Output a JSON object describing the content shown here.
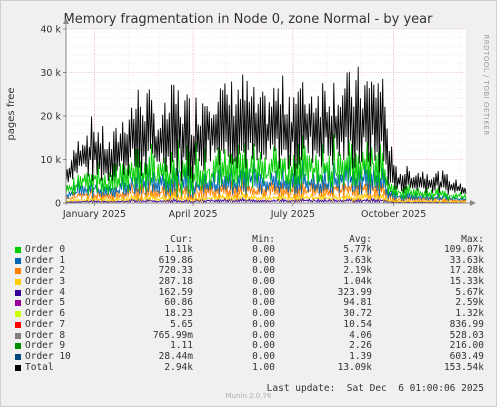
{
  "window_title": "Memory fragmentation in Node 0, zone Normal - by year",
  "watermark": "RRDTOOL / TOBI OETIKER",
  "footer_version": "Munin 2.0.76",
  "last_update": "Last update:  Sat Dec  6 01:00:06 2025",
  "legend_headers": {
    "cur": "Cur:",
    "min": "Min:",
    "avg": "Avg:",
    "max": "Max:"
  },
  "legend": [
    {
      "name": "Order 0",
      "color": "#00cc00",
      "cur": "1.11k",
      "min": "0.00",
      "avg": "5.77k",
      "max": "109.07k"
    },
    {
      "name": "Order 1",
      "color": "#0066b3",
      "cur": "619.86",
      "min": "0.00",
      "avg": "3.63k",
      "max": "33.63k"
    },
    {
      "name": "Order 2",
      "color": "#ff8000",
      "cur": "720.33",
      "min": "0.00",
      "avg": "2.19k",
      "max": "17.28k"
    },
    {
      "name": "Order 3",
      "color": "#ffcc00",
      "cur": "287.18",
      "min": "0.00",
      "avg": "1.04k",
      "max": "15.33k"
    },
    {
      "name": "Order 4",
      "color": "#330099",
      "cur": "162.59",
      "min": "0.00",
      "avg": "323.99",
      "max": "5.67k"
    },
    {
      "name": "Order 5",
      "color": "#990099",
      "cur": "60.86",
      "min": "0.00",
      "avg": "94.81",
      "max": "2.59k"
    },
    {
      "name": "Order 6",
      "color": "#ccff00",
      "cur": "18.23",
      "min": "0.00",
      "avg": "30.72",
      "max": "1.32k"
    },
    {
      "name": "Order 7",
      "color": "#ff0000",
      "cur": "5.65",
      "min": "0.00",
      "avg": "10.54",
      "max": "836.99"
    },
    {
      "name": "Order 8",
      "color": "#808080",
      "cur": "765.99m",
      "min": "0.00",
      "avg": "4.06",
      "max": "528.03"
    },
    {
      "name": "Order 9",
      "color": "#008f00",
      "cur": "1.11",
      "min": "0.00",
      "avg": "2.26",
      "max": "216.00"
    },
    {
      "name": "Order 10",
      "color": "#00487d",
      "cur": "28.44m",
      "min": "0.00",
      "avg": "1.39",
      "max": "603.49"
    },
    {
      "name": "Total",
      "color": "#000000",
      "cur": "2.94k",
      "min": "1.00",
      "avg": "13.09k",
      "max": "153.54k"
    }
  ],
  "chart_data": {
    "type": "line",
    "title": "Memory fragmentation in Node 0, zone Normal - by year",
    "ylabel": "pages free",
    "ylim": [
      0,
      40000
    ],
    "yticks": [
      0,
      10000,
      20000,
      30000,
      40000
    ],
    "ytick_labels": [
      "0",
      "10 k",
      "20 k",
      "30 k",
      "40 k"
    ],
    "x_range": [
      "2024-12-06",
      "2025-12-06"
    ],
    "xtick_labels": [
      "January 2025",
      "April 2025",
      "July 2025",
      "October 2025"
    ],
    "xtick_dates": [
      "2025-01-01",
      "2025-04-01",
      "2025-07-01",
      "2025-10-01"
    ],
    "grid": true,
    "series_colors": {
      "Total": "#000000",
      "Order 0": "#00cc00",
      "Order 1": "#0066b3",
      "Order 2": "#ff8000",
      "Order 3": "#ffcc00",
      "Order 4": "#330099"
    },
    "total_envelope": {
      "x": [
        "2024-12-06",
        "2024-12-20",
        "2025-01-01",
        "2025-01-15",
        "2025-02-01",
        "2025-02-15",
        "2025-03-01",
        "2025-03-15",
        "2025-04-01",
        "2025-04-15",
        "2025-05-01",
        "2025-05-15",
        "2025-06-01",
        "2025-06-15",
        "2025-07-01",
        "2025-07-15",
        "2025-08-01",
        "2025-08-15",
        "2025-09-01",
        "2025-09-10",
        "2025-09-20",
        "2025-10-01",
        "2025-10-15",
        "2025-11-01",
        "2025-11-15",
        "2025-12-06"
      ],
      "low": [
        4000,
        6000,
        3000,
        4000,
        5000,
        2000,
        8000,
        4000,
        3000,
        7000,
        8000,
        6000,
        5000,
        7000,
        4000,
        8000,
        6000,
        7000,
        5000,
        6000,
        4000,
        1500,
        2000,
        2000,
        1500,
        2000
      ],
      "high": [
        8000,
        17000,
        21000,
        15000,
        24000,
        30000,
        20000,
        29000,
        25000,
        30000,
        28000,
        31000,
        25000,
        29000,
        30000,
        28000,
        31000,
        30000,
        32000,
        31000,
        34000,
        9000,
        8500,
        8000,
        7500,
        4000
      ]
    }
  }
}
